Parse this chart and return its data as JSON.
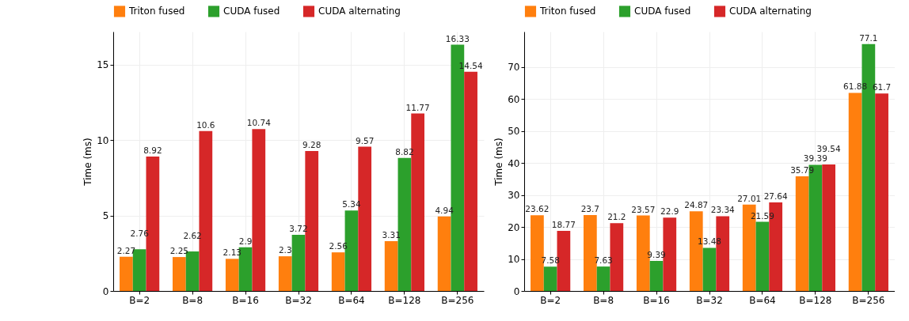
{
  "chart_data": [
    {
      "type": "bar",
      "ylabel": "Time (ms)",
      "categories": [
        "B=2",
        "B=8",
        "B=16",
        "B=32",
        "B=64",
        "B=128",
        "B=256"
      ],
      "ylim": [
        0,
        17.2
      ],
      "yticks": [
        0,
        5,
        10,
        15
      ],
      "grid": true,
      "legend": "top",
      "data_labels": true,
      "series": [
        {
          "name": "Triton fused",
          "color": "#ff7f0e",
          "values": [
            2.27,
            2.25,
            2.13,
            2.3,
            2.56,
            3.31,
            4.94
          ]
        },
        {
          "name": "CUDA fused",
          "color": "#2ca02c",
          "values": [
            2.76,
            2.62,
            2.9,
            3.72,
            5.34,
            8.82,
            16.33
          ]
        },
        {
          "name": "CUDA alternating",
          "color": "#d62728",
          "values": [
            8.92,
            10.6,
            10.74,
            9.28,
            9.57,
            11.77,
            14.54
          ]
        }
      ]
    },
    {
      "type": "bar",
      "ylabel": "Time (ms)",
      "categories": [
        "B=2",
        "B=8",
        "B=16",
        "B=32",
        "B=64",
        "B=128",
        "B=256"
      ],
      "ylim": [
        0,
        81
      ],
      "yticks": [
        0,
        10,
        20,
        30,
        40,
        50,
        60,
        70
      ],
      "grid": true,
      "legend": "top",
      "data_labels": true,
      "series": [
        {
          "name": "Triton fused",
          "color": "#ff7f0e",
          "values": [
            23.62,
            23.7,
            23.57,
            24.87,
            27.01,
            35.79,
            61.88
          ]
        },
        {
          "name": "CUDA fused",
          "color": "#2ca02c",
          "values": [
            7.58,
            7.63,
            9.39,
            13.48,
            21.59,
            39.39,
            77.1
          ]
        },
        {
          "name": "CUDA alternating",
          "color": "#d62728",
          "values": [
            18.77,
            21.2,
            22.9,
            23.34,
            27.64,
            39.54,
            61.7
          ]
        }
      ]
    }
  ]
}
